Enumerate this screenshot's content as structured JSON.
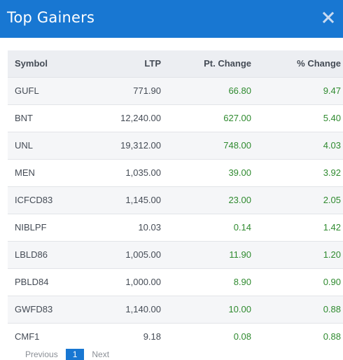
{
  "modal": {
    "title": "Top Gainers",
    "close_icon": "close-icon"
  },
  "table": {
    "headers": [
      "Symbol",
      "LTP",
      "Pt. Change",
      "% Change"
    ],
    "rows": [
      {
        "symbol": "GUFL",
        "ltp": "771.90",
        "pt_change": "66.80",
        "pct_change": "9.47"
      },
      {
        "symbol": "BNT",
        "ltp": "12,240.00",
        "pt_change": "627.00",
        "pct_change": "5.40"
      },
      {
        "symbol": "UNL",
        "ltp": "19,312.00",
        "pt_change": "748.00",
        "pct_change": "4.03"
      },
      {
        "symbol": "MEN",
        "ltp": "1,035.00",
        "pt_change": "39.00",
        "pct_change": "3.92"
      },
      {
        "symbol": "ICFCD83",
        "ltp": "1,145.00",
        "pt_change": "23.00",
        "pct_change": "2.05"
      },
      {
        "symbol": "NIBLPF",
        "ltp": "10.03",
        "pt_change": "0.14",
        "pct_change": "1.42"
      },
      {
        "symbol": "LBLD86",
        "ltp": "1,005.00",
        "pt_change": "11.90",
        "pct_change": "1.20"
      },
      {
        "symbol": "PBLD84",
        "ltp": "1,000.00",
        "pt_change": "8.90",
        "pct_change": "0.90"
      },
      {
        "symbol": "GWFD83",
        "ltp": "1,140.00",
        "pt_change": "10.00",
        "pct_change": "0.88"
      },
      {
        "symbol": "CMF1",
        "ltp": "9.18",
        "pt_change": "0.08",
        "pct_change": "0.88"
      }
    ]
  },
  "pagination": {
    "previous_label": "Previous",
    "current_page": "1",
    "next_label": "Next"
  },
  "colors": {
    "header_bg": "#1877d2",
    "positive": "#2f8a2f",
    "text": "#444b55"
  }
}
